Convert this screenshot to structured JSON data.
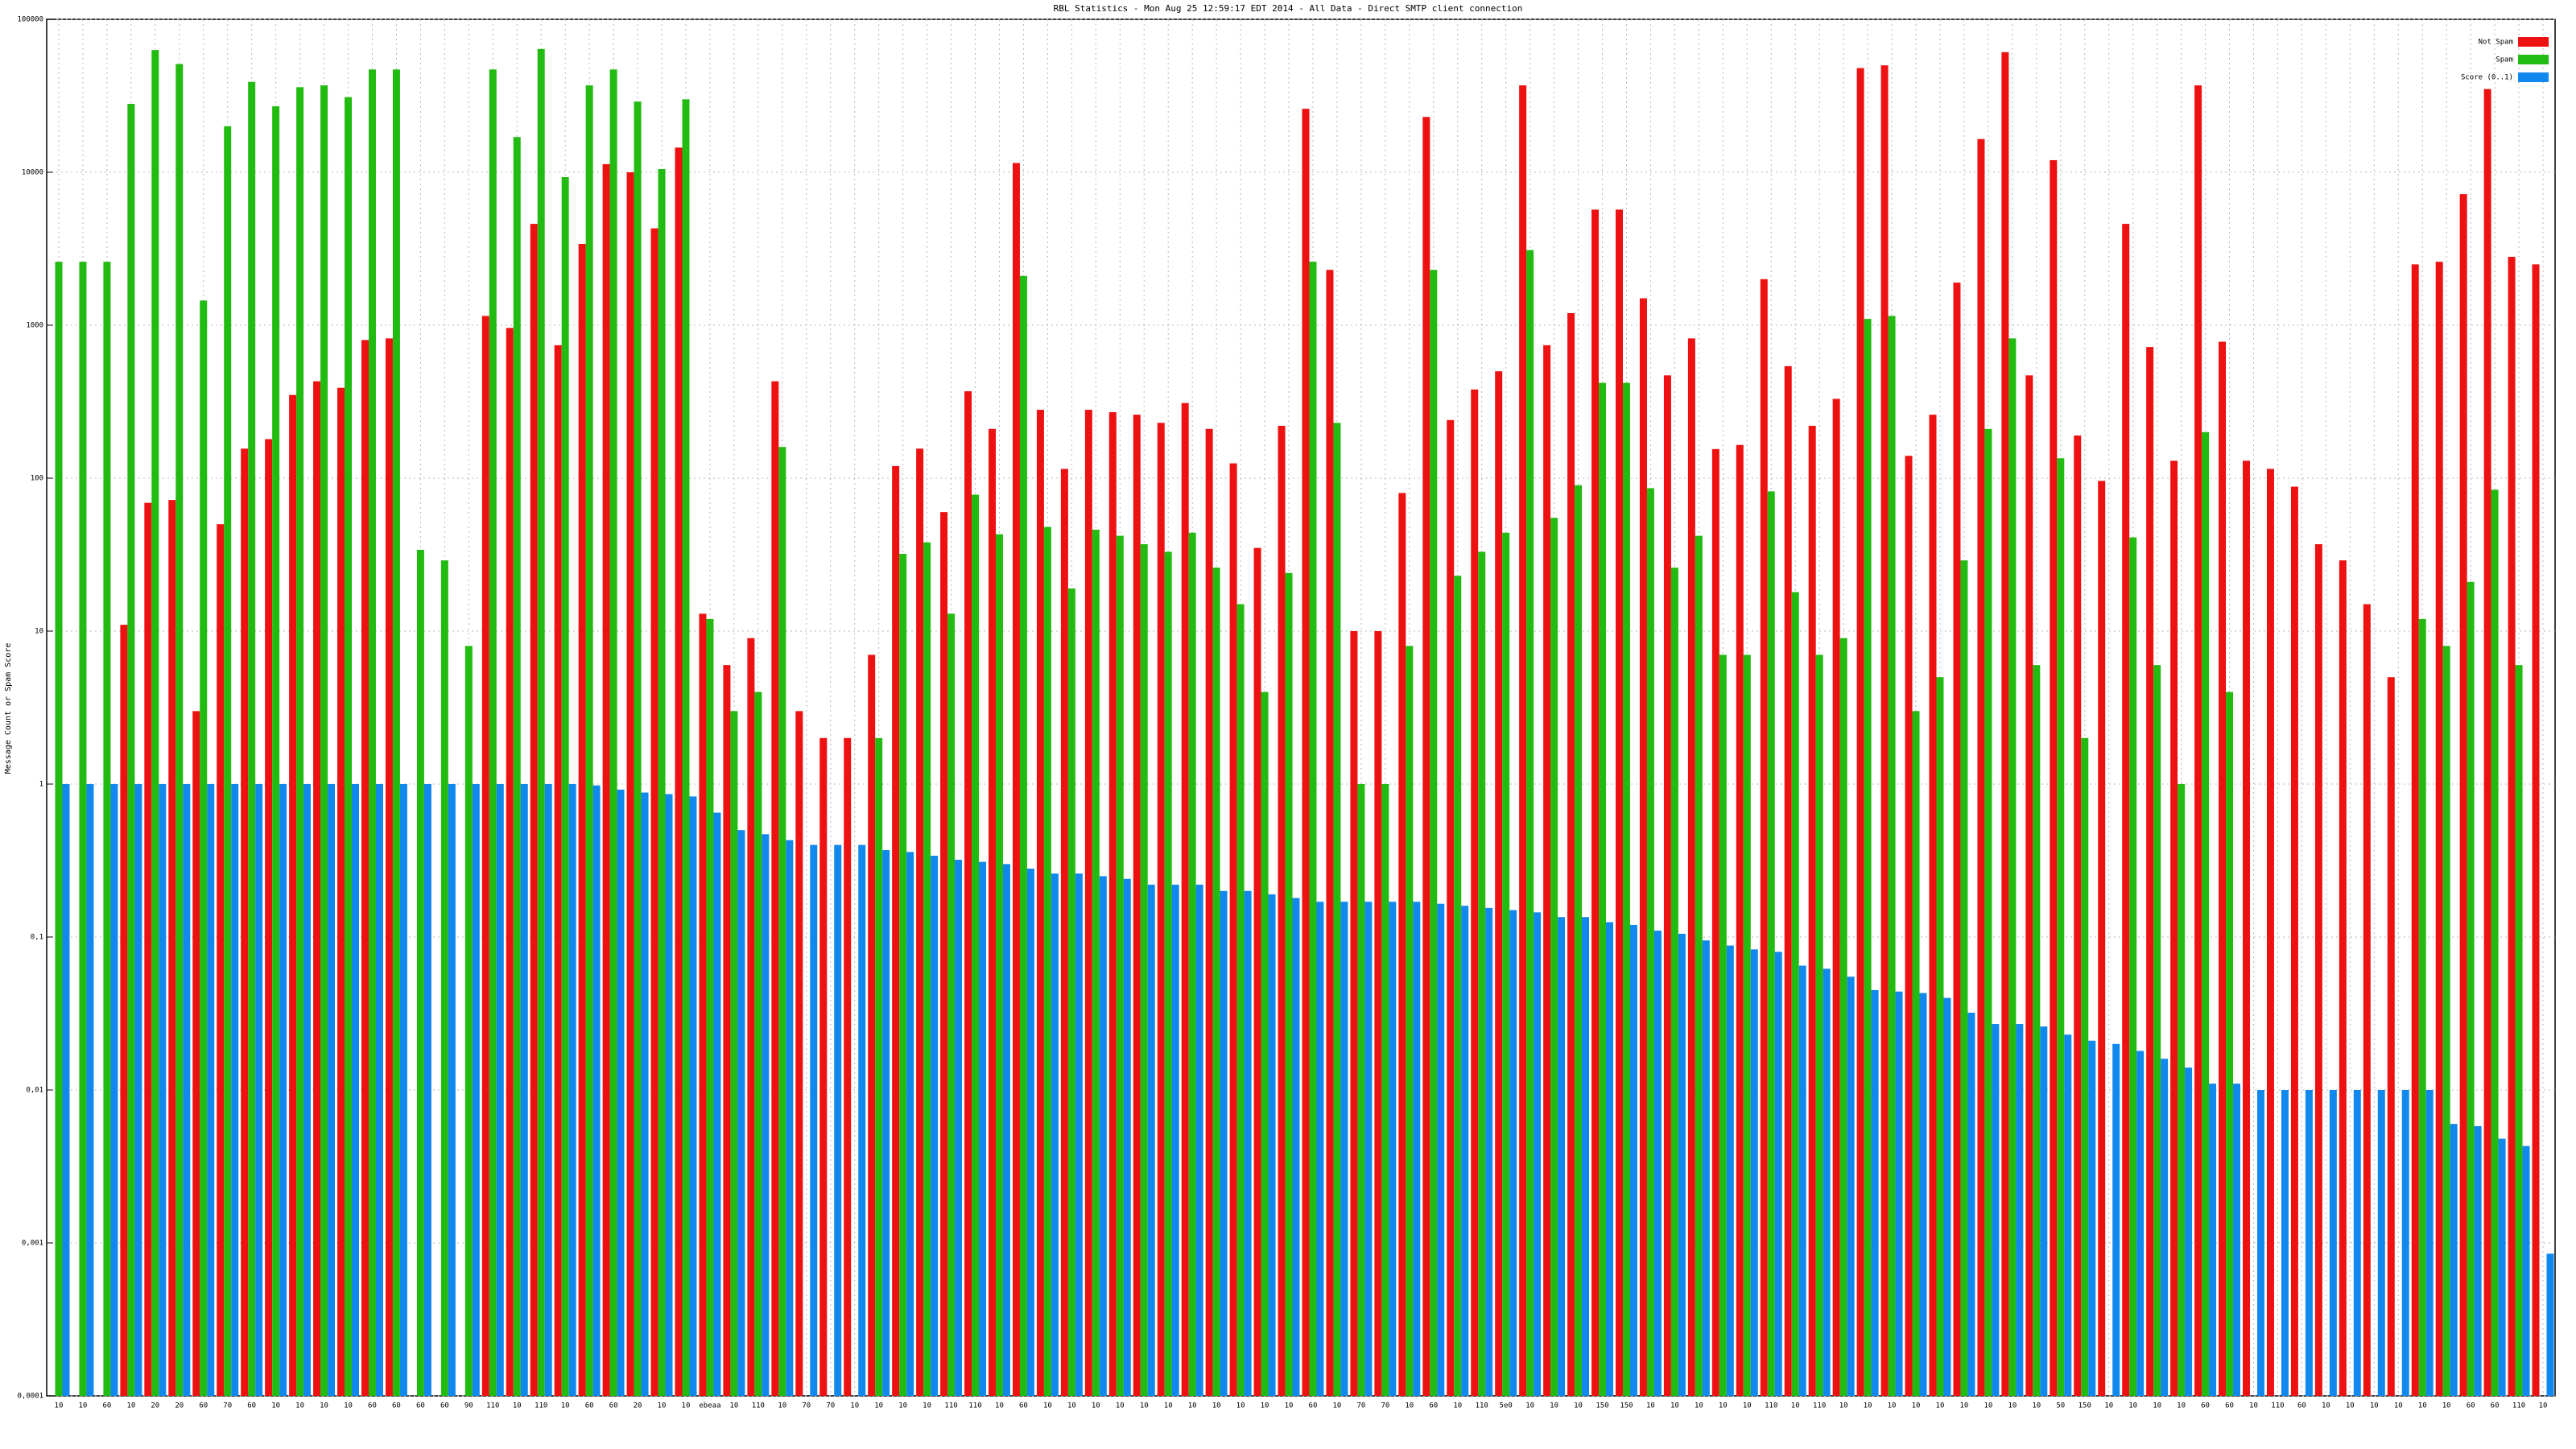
{
  "chart_data": {
    "type": "bar",
    "title": "RBL Statistics - Mon Aug 25 12:59:17 EDT 2014 - All Data - Direct SMTP client connection",
    "y_label": "Message Count or Spam Score",
    "log_scale": true,
    "grid": true,
    "legend": "top-right",
    "categories": [
      "10",
      "10",
      "60",
      "10",
      "20",
      "20",
      "60",
      "70",
      "60",
      "10",
      "10",
      "10",
      "10",
      "60",
      "60",
      "60",
      "60",
      "90",
      "110",
      "10",
      "110",
      "10",
      "60",
      "60",
      "20",
      "10",
      "10",
      "ebeaa",
      "10",
      "110",
      "10",
      "70",
      "70",
      "10",
      "10",
      "10",
      "10",
      "110",
      "110",
      "10",
      "60",
      "10",
      "10",
      "10",
      "10",
      "10",
      "10",
      "10",
      "10",
      "10",
      "10",
      "10",
      "60",
      "10",
      "70",
      "70",
      "10",
      "60",
      "10",
      "110",
      "5e0",
      "10",
      "10",
      "10",
      "150",
      "150",
      "10",
      "10",
      "10",
      "10",
      "10",
      "110",
      "10",
      "110",
      "10",
      "10",
      "10",
      "10",
      "10",
      "10",
      "10",
      "10",
      "10",
      "50",
      "150",
      "10",
      "10",
      "10",
      "10",
      "60",
      "60",
      "10",
      "110",
      "60",
      "10",
      "10",
      "10",
      "10",
      "10",
      "10",
      "60",
      "60",
      "110",
      "10"
    ],
    "series": [
      {
        "name": "Not Spam",
        "color": "#ee1111",
        "values": [
          null,
          null,
          null,
          11,
          69,
          72,
          3,
          50,
          156,
          180,
          350,
          430,
          390,
          800,
          820,
          null,
          null,
          null,
          1150,
          960,
          4600,
          740,
          3400,
          11300,
          10000,
          4300,
          14500,
          13,
          6,
          9,
          430,
          3,
          2,
          2,
          7,
          120,
          156,
          60,
          370,
          210,
          11500,
          280,
          115,
          280,
          270,
          260,
          230,
          310,
          210,
          125,
          35,
          220,
          26000,
          2300,
          10,
          10,
          80,
          23000,
          240,
          380,
          500,
          37000,
          740,
          1200,
          5700,
          5700,
          1500,
          470,
          820,
          155,
          165,
          2000,
          540,
          220,
          330,
          48000,
          50000,
          140,
          260,
          1900,
          16500,
          61000,
          470,
          12000,
          190,
          96,
          4600,
          720,
          130,
          37000,
          780,
          130,
          115,
          88,
          37,
          29,
          15,
          5,
          2500,
          2600,
          7200,
          35000,
          2800,
          2500
        ]
      },
      {
        "name": "Spam",
        "color": "#22bb11",
        "values": [
          2600,
          2600,
          2600,
          28000,
          63000,
          51000,
          1450,
          20000,
          39000,
          27000,
          36000,
          37000,
          31000,
          47000,
          47000,
          34,
          29,
          8,
          47000,
          17000,
          64000,
          9300,
          37000,
          47000,
          29000,
          10500,
          30000,
          12,
          3,
          4,
          160,
          null,
          null,
          null,
          2,
          32,
          38,
          13,
          78,
          43,
          2100,
          48,
          19,
          46,
          42,
          37,
          33,
          44,
          26,
          15,
          4,
          24,
          2600,
          230,
          1,
          1,
          8,
          2300,
          23,
          33,
          44,
          3100,
          55,
          90,
          420,
          420,
          86,
          26,
          42,
          7,
          7,
          82,
          18,
          7,
          9,
          1100,
          1150,
          3,
          5,
          29,
          210,
          820,
          6,
          135,
          2,
          null,
          41,
          6,
          1,
          200,
          4,
          null,
          null,
          null,
          null,
          null,
          null,
          null,
          12,
          8,
          21,
          84,
          6,
          null
        ]
      },
      {
        "name": "Score (0..1)",
        "color": "#1188ee",
        "values": [
          1,
          1,
          1,
          1,
          1,
          1,
          1,
          1,
          1,
          1,
          1,
          1,
          1,
          1,
          1,
          1,
          1,
          1,
          1,
          1,
          1,
          1,
          0.98,
          0.92,
          0.88,
          0.86,
          0.83,
          0.65,
          0.5,
          0.47,
          0.43,
          0.4,
          0.4,
          0.4,
          0.37,
          0.36,
          0.34,
          0.32,
          0.31,
          0.3,
          0.28,
          0.26,
          0.26,
          0.25,
          0.24,
          0.22,
          0.22,
          0.22,
          0.2,
          0.2,
          0.19,
          0.18,
          0.17,
          0.17,
          0.17,
          0.17,
          0.17,
          0.165,
          0.16,
          0.155,
          0.15,
          0.145,
          0.135,
          0.135,
          0.125,
          0.12,
          0.11,
          0.105,
          0.095,
          0.088,
          0.083,
          0.08,
          0.065,
          0.062,
          0.055,
          0.045,
          0.044,
          0.043,
          0.04,
          0.032,
          0.027,
          0.027,
          0.026,
          0.023,
          0.021,
          0.02,
          0.018,
          0.016,
          0.014,
          0.011,
          0.011,
          0.01,
          0.01,
          0.01,
          0.01,
          0.01,
          0.01,
          0.01,
          0.01,
          0.006,
          0.0058,
          0.0048,
          0.0043,
          0.00085
        ]
      }
    ],
    "ylim": [
      0.0001,
      100000
    ],
    "yticks": [
      {
        "value": 0.0001,
        "label": "0,0001"
      },
      {
        "value": 0.001,
        "label": "0,001"
      },
      {
        "value": 0.01,
        "label": "0,01"
      },
      {
        "value": 0.1,
        "label": "0,1"
      },
      1,
      10,
      100,
      1000,
      10000,
      100000
    ]
  }
}
